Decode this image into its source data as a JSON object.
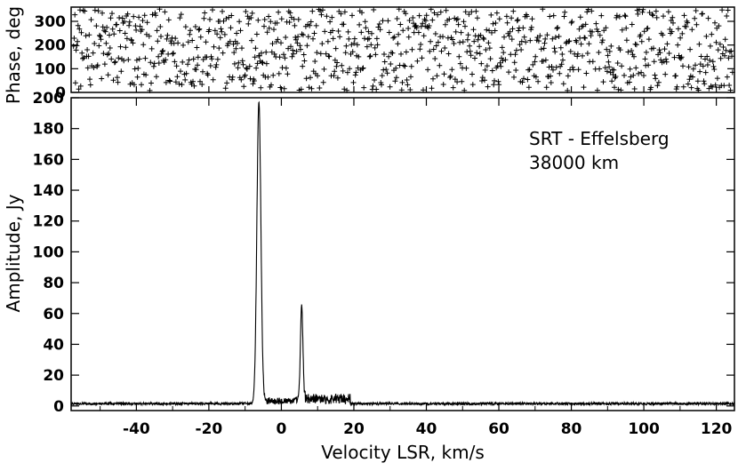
{
  "chart_data": [
    {
      "type": "scatter",
      "panel": "phase",
      "ylabel": "Phase, deg",
      "xlim": [
        -58,
        125
      ],
      "ylim": [
        0,
        360
      ],
      "yticks": [
        0,
        100,
        200,
        300
      ],
      "ytick_labels": [
        "0",
        "100",
        "200",
        "300"
      ],
      "marker": "plus",
      "series": [
        {
          "note_x_range": [
            -58,
            125
          ],
          "points_description_free": true,
          "x_step": 0.2,
          "values_y_deg": "random_uniform_0_360"
        }
      ]
    },
    {
      "type": "line",
      "panel": "amplitude",
      "xlabel": "Velocity LSR, km/s",
      "ylabel": "Amplitude, Jy",
      "xlim": [
        -58,
        125
      ],
      "ylim": [
        -3,
        200
      ],
      "xticks": [
        -40,
        -20,
        0,
        20,
        40,
        60,
        80,
        100,
        120
      ],
      "xtick_labels": [
        "-40",
        "-20",
        "0",
        "20",
        "40",
        "60",
        "80",
        "100",
        "120"
      ],
      "yticks": [
        0,
        20,
        40,
        60,
        80,
        100,
        120,
        140,
        160,
        180,
        200
      ],
      "ytick_labels": [
        "0",
        "20",
        "40",
        "60",
        "80",
        "100",
        "120",
        "140",
        "160",
        "180",
        "200"
      ],
      "annotation": [
        "SRT - Effelsberg",
        "38000 km"
      ],
      "peaks": [
        {
          "x": -6.2,
          "y": 196,
          "width": 0.55
        },
        {
          "x": 5.6,
          "y": 64,
          "width": 0.35
        }
      ],
      "baseline": 1.5,
      "feature_regions": [
        {
          "x_range": [
            -5,
            5
          ],
          "level": 4
        },
        {
          "x_range": [
            6,
            19
          ],
          "level": 6
        }
      ]
    }
  ]
}
